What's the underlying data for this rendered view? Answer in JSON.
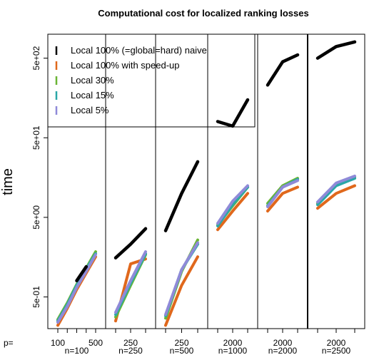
{
  "chart_data": {
    "type": "line",
    "title": "Computational cost for localized ranking losses",
    "ylabel": "time",
    "yscale": "log",
    "ylim": [
      0.2,
      1000
    ],
    "yticks": [
      0.5,
      5,
      50,
      500
    ],
    "ytick_labels": [
      "5e-01",
      "5e+00",
      "5e+01",
      "5e+02"
    ],
    "p_prefix": "p=",
    "legend": {
      "position": "top-left",
      "entries": [
        {
          "label": "Local 100% (=global=hard) naive",
          "color": "#000000"
        },
        {
          "label": "Local 100% with speed-up",
          "color": "#e0681c"
        },
        {
          "label": "Local 30%",
          "color": "#6ab535"
        },
        {
          "label": "Local 15%",
          "color": "#2aa7a7"
        },
        {
          "label": "Local 5%",
          "color": "#8f8ad8"
        }
      ]
    },
    "panels": [
      {
        "n_label": "n=100",
        "p_ticks": [
          "100",
          "500"
        ],
        "p": [
          100,
          200,
          300,
          400,
          500
        ],
        "series": [
          {
            "name": "Local 100% with speed-up",
            "values": [
              0.22,
              0.36,
              0.62,
              1.0,
              1.6
            ]
          },
          {
            "name": "Local 30%",
            "values": [
              0.26,
              0.42,
              0.72,
              1.15,
              1.85
            ]
          },
          {
            "name": "Local 15%",
            "values": [
              0.25,
              0.4,
              0.7,
              1.12,
              1.75
            ]
          },
          {
            "name": "Local 5%",
            "values": [
              0.24,
              0.38,
              0.66,
              1.05,
              1.7
            ]
          },
          {
            "name": "Local 100% (=global=hard) naive",
            "values": [
              null,
              null,
              0.8,
              1.2,
              null
            ]
          }
        ]
      },
      {
        "n_label": "n=250",
        "p_ticks": [
          "250"
        ],
        "p": [
          100,
          250,
          400
        ],
        "series": [
          {
            "name": "Local 100% (=global=hard) naive",
            "values": [
              1.55,
              2.3,
              3.6
            ]
          },
          {
            "name": "Local 100% with speed-up",
            "values": [
              0.25,
              1.3,
              1.5
            ]
          },
          {
            "name": "Local 30%",
            "values": [
              0.28,
              0.7,
              1.7
            ]
          },
          {
            "name": "Local 15%",
            "values": [
              0.3,
              0.75,
              1.75
            ]
          },
          {
            "name": "Local 5%",
            "values": [
              0.32,
              0.8,
              1.85
            ]
          }
        ]
      },
      {
        "n_label": "n=500",
        "p_ticks": [
          "250"
        ],
        "p": [
          100,
          250,
          400
        ],
        "series": [
          {
            "name": "Local 100% (=global=hard) naive",
            "values": [
              3.4,
              10,
              25
            ]
          },
          {
            "name": "Local 100% with speed-up",
            "values": [
              0.22,
              0.7,
              1.6
            ]
          },
          {
            "name": "Local 30%",
            "values": [
              0.27,
              1.05,
              2.6
            ]
          },
          {
            "name": "Local 15%",
            "values": [
              0.29,
              1.1,
              2.3
            ]
          },
          {
            "name": "Local 5%",
            "values": [
              0.3,
              1.1,
              2.4
            ]
          }
        ]
      },
      {
        "n_label": "n=1000",
        "p_ticks": [
          "2000"
        ],
        "p": [
          500,
          2000,
          3500
        ],
        "series": [
          {
            "name": "Local 100% (=global=hard) naive",
            "values": [
              80,
              70,
              150
            ]
          },
          {
            "name": "Local 100% with speed-up",
            "values": [
              3.5,
              6.0,
              10
            ]
          },
          {
            "name": "Local 30%",
            "values": [
              4.0,
              7.0,
              12
            ]
          },
          {
            "name": "Local 15%",
            "values": [
              3.9,
              7.3,
              12
            ]
          },
          {
            "name": "Local 5%",
            "values": [
              4.2,
              8.0,
              12.5
            ]
          }
        ]
      },
      {
        "n_label": "n=2000",
        "p_ticks": [
          "2000"
        ],
        "p": [
          500,
          2000,
          3500
        ],
        "series": [
          {
            "name": "Local 100% (=global=hard) naive",
            "values": [
              230,
              450,
              550
            ]
          },
          {
            "name": "Local 100% with speed-up",
            "values": [
              6.0,
              10,
              12
            ]
          },
          {
            "name": "Local 30%",
            "values": [
              7.5,
              12.5,
              15.5
            ]
          },
          {
            "name": "Local 15%",
            "values": [
              7.0,
              12,
              15
            ]
          },
          {
            "name": "Local 5%",
            "values": [
              6.8,
              12,
              14.5
            ]
          }
        ]
      },
      {
        "n_label": "n=2500",
        "p_ticks": [
          "2000"
        ],
        "p": [
          500,
          2000,
          3500
        ],
        "series": [
          {
            "name": "Local 100% (=global=hard) naive",
            "values": [
              500,
              700,
              800
            ]
          },
          {
            "name": "Local 100% with speed-up",
            "values": [
              6.5,
              10,
              12.5
            ]
          },
          {
            "name": "Local 30%",
            "values": [
              7.5,
              13,
              16
            ]
          },
          {
            "name": "Local 15%",
            "values": [
              7.2,
              12.5,
              15.5
            ]
          },
          {
            "name": "Local 5%",
            "values": [
              7.8,
              13.5,
              16.5
            ]
          }
        ]
      }
    ]
  }
}
